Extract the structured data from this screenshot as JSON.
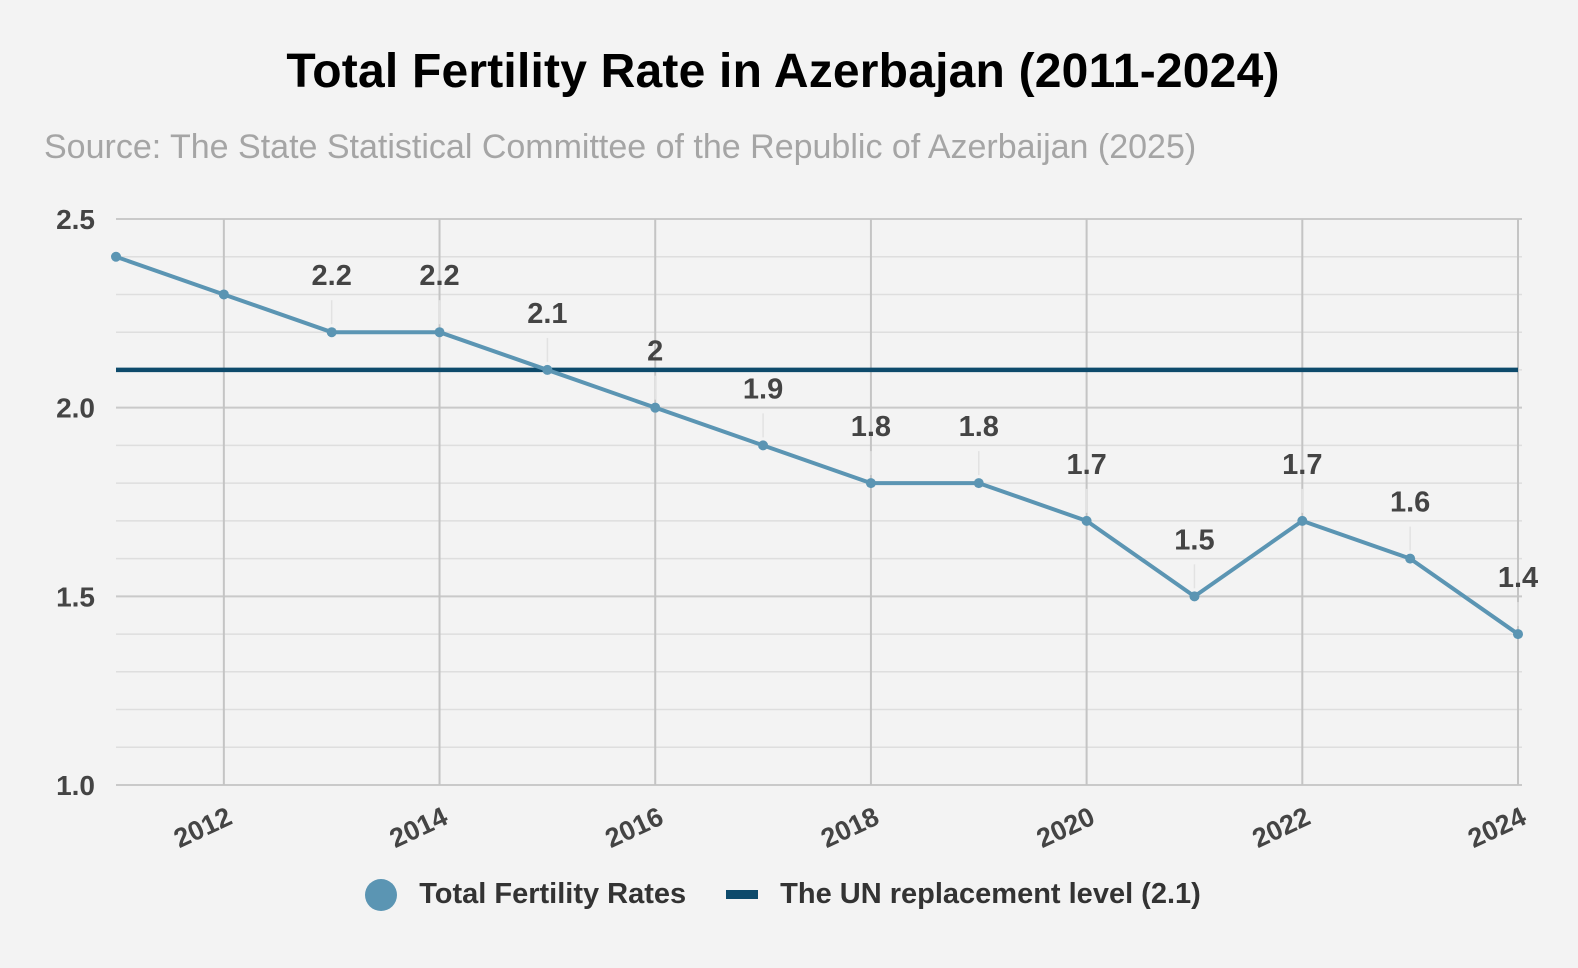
{
  "chart_data": {
    "type": "line",
    "title": "Total Fertility Rate in Azerbajan (2011-2024)",
    "subtitle": "Source: The State Statistical Committee of the Republic of Azerbaijan (2025)",
    "x": [
      2011,
      2012,
      2013,
      2014,
      2015,
      2016,
      2017,
      2018,
      2019,
      2020,
      2021,
      2022,
      2023,
      2024
    ],
    "xlim": [
      2011,
      2024
    ],
    "xticks": [
      "2012",
      "2014",
      "2016",
      "2018",
      "2020",
      "2022",
      "2024"
    ],
    "ylim": [
      1.0,
      2.5
    ],
    "yticks": [
      "1.0",
      "1.5",
      "2.0",
      "2.5"
    ],
    "xlabel": "",
    "ylabel": "",
    "grid": true,
    "legend_position": "bottom",
    "series": [
      {
        "name": "Total Fertility Rates",
        "color": "#5b95b3",
        "values": [
          2.4,
          2.3,
          2.2,
          2.2,
          2.1,
          2.0,
          1.9,
          1.8,
          1.8,
          1.7,
          1.5,
          1.7,
          1.6,
          1.4
        ],
        "data_labels": [
          "",
          "",
          "2.2",
          "2.2",
          "2.1",
          "2",
          "1.9",
          "1.8",
          "1.8",
          "1.7",
          "1.5",
          "1.7",
          "1.6",
          "1.4"
        ]
      },
      {
        "name": "The UN replacement level (2.1)",
        "color": "#0d4a6b",
        "values": [
          2.1,
          2.1,
          2.1,
          2.1,
          2.1,
          2.1,
          2.1,
          2.1,
          2.1,
          2.1,
          2.1,
          2.1,
          2.1,
          2.1
        ]
      }
    ]
  }
}
